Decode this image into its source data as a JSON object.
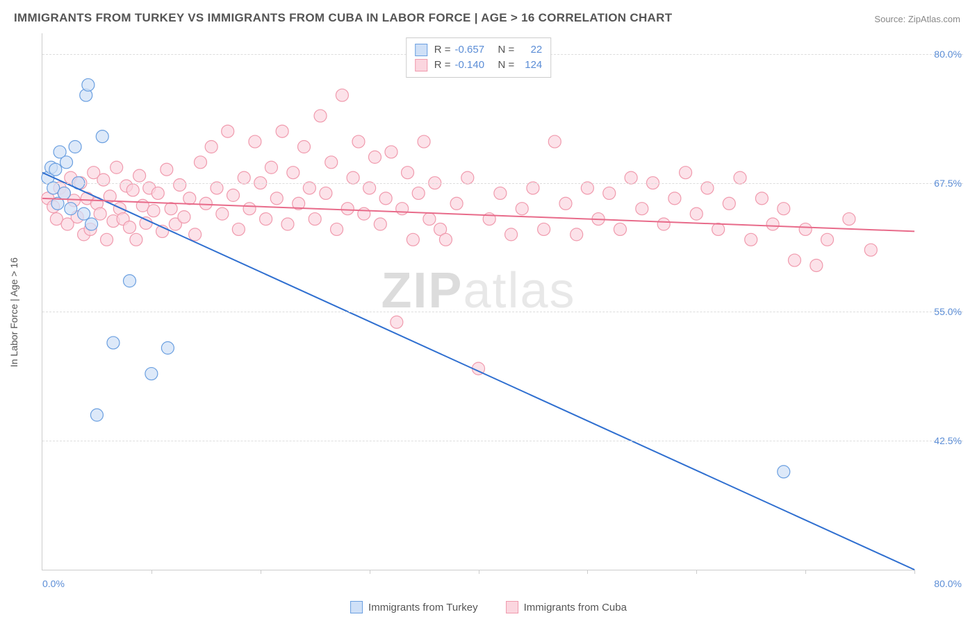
{
  "title": "IMMIGRANTS FROM TURKEY VS IMMIGRANTS FROM CUBA IN LABOR FORCE | AGE > 16 CORRELATION CHART",
  "source_label": "Source:",
  "source_name": "ZipAtlas.com",
  "y_axis_label": "In Labor Force | Age > 16",
  "watermark_zip": "ZIP",
  "watermark_atlas": "atlas",
  "chart": {
    "type": "scatter",
    "xlim": [
      0,
      80
    ],
    "ylim": [
      30,
      82
    ],
    "x_tick_positions": [
      0,
      10,
      20,
      30,
      40,
      50,
      60,
      70,
      80
    ],
    "x_start_label": "0.0%",
    "x_end_label": "80.0%",
    "y_ticks": [
      {
        "value": 42.5,
        "label": "42.5%"
      },
      {
        "value": 55.0,
        "label": "55.0%"
      },
      {
        "value": 67.5,
        "label": "67.5%"
      },
      {
        "value": 80.0,
        "label": "80.0%"
      }
    ],
    "grid_color": "#dddddd",
    "axis_color": "#cccccc",
    "background_color": "#ffffff",
    "marker_radius": 9,
    "marker_stroke_width": 1.2,
    "line_stroke_width": 2,
    "series": [
      {
        "name": "Immigrants from Turkey",
        "fill_color": "#cfe0f7",
        "stroke_color": "#6a9fe0",
        "line_color": "#2f6fd0",
        "r_label": "R =",
        "r_value": "-0.657",
        "n_label": "N =",
        "n_value": "22",
        "regression": {
          "x1": 0,
          "y1": 68.5,
          "x2": 80,
          "y2": 30.0
        },
        "points": [
          [
            0.5,
            68.0
          ],
          [
            0.8,
            69.0
          ],
          [
            1.0,
            67.0
          ],
          [
            1.2,
            68.8
          ],
          [
            1.4,
            65.5
          ],
          [
            1.6,
            70.5
          ],
          [
            2.0,
            66.5
          ],
          [
            2.2,
            69.5
          ],
          [
            2.6,
            65.0
          ],
          [
            3.0,
            71.0
          ],
          [
            3.3,
            67.5
          ],
          [
            3.8,
            64.5
          ],
          [
            4.0,
            76.0
          ],
          [
            4.2,
            77.0
          ],
          [
            4.5,
            63.5
          ],
          [
            5.0,
            45.0
          ],
          [
            5.5,
            72.0
          ],
          [
            6.5,
            52.0
          ],
          [
            8.0,
            58.0
          ],
          [
            10.0,
            49.0
          ],
          [
            11.5,
            51.5
          ],
          [
            68.0,
            39.5
          ]
        ]
      },
      {
        "name": "Immigrants from Cuba",
        "fill_color": "#fbd6df",
        "stroke_color": "#f09aad",
        "line_color": "#e86b8a",
        "r_label": "R =",
        "r_value": "-0.140",
        "n_label": "N =",
        "n_value": "124",
        "regression": {
          "x1": 0,
          "y1": 66.0,
          "x2": 80,
          "y2": 62.8
        },
        "points": [
          [
            0.5,
            66.0
          ],
          [
            1.0,
            65.2
          ],
          [
            1.3,
            64.0
          ],
          [
            1.6,
            67.0
          ],
          [
            2.0,
            66.5
          ],
          [
            2.3,
            63.5
          ],
          [
            2.6,
            68.0
          ],
          [
            2.9,
            65.8
          ],
          [
            3.2,
            64.2
          ],
          [
            3.5,
            67.5
          ],
          [
            3.8,
            62.5
          ],
          [
            4.1,
            66.0
          ],
          [
            4.4,
            63.0
          ],
          [
            4.7,
            68.5
          ],
          [
            5.0,
            65.5
          ],
          [
            5.3,
            64.5
          ],
          [
            5.6,
            67.8
          ],
          [
            5.9,
            62.0
          ],
          [
            6.2,
            66.2
          ],
          [
            6.5,
            63.8
          ],
          [
            6.8,
            69.0
          ],
          [
            7.1,
            65.0
          ],
          [
            7.4,
            64.0
          ],
          [
            7.7,
            67.2
          ],
          [
            8.0,
            63.2
          ],
          [
            8.3,
            66.8
          ],
          [
            8.6,
            62.0
          ],
          [
            8.9,
            68.2
          ],
          [
            9.2,
            65.3
          ],
          [
            9.5,
            63.6
          ],
          [
            9.8,
            67.0
          ],
          [
            10.2,
            64.8
          ],
          [
            10.6,
            66.5
          ],
          [
            11.0,
            62.8
          ],
          [
            11.4,
            68.8
          ],
          [
            11.8,
            65.0
          ],
          [
            12.2,
            63.5
          ],
          [
            12.6,
            67.3
          ],
          [
            13.0,
            64.2
          ],
          [
            13.5,
            66.0
          ],
          [
            14.0,
            62.5
          ],
          [
            14.5,
            69.5
          ],
          [
            15.0,
            65.5
          ],
          [
            15.5,
            71.0
          ],
          [
            16.0,
            67.0
          ],
          [
            16.5,
            64.5
          ],
          [
            17.0,
            72.5
          ],
          [
            17.5,
            66.3
          ],
          [
            18.0,
            63.0
          ],
          [
            18.5,
            68.0
          ],
          [
            19.0,
            65.0
          ],
          [
            19.5,
            71.5
          ],
          [
            20.0,
            67.5
          ],
          [
            20.5,
            64.0
          ],
          [
            21.0,
            69.0
          ],
          [
            21.5,
            66.0
          ],
          [
            22.0,
            72.5
          ],
          [
            22.5,
            63.5
          ],
          [
            23.0,
            68.5
          ],
          [
            23.5,
            65.5
          ],
          [
            24.0,
            71.0
          ],
          [
            24.5,
            67.0
          ],
          [
            25.0,
            64.0
          ],
          [
            25.5,
            74.0
          ],
          [
            26.0,
            66.5
          ],
          [
            26.5,
            69.5
          ],
          [
            27.0,
            63.0
          ],
          [
            27.5,
            76.0
          ],
          [
            28.0,
            65.0
          ],
          [
            28.5,
            68.0
          ],
          [
            29.0,
            71.5
          ],
          [
            29.5,
            64.5
          ],
          [
            30.0,
            67.0
          ],
          [
            30.5,
            70.0
          ],
          [
            31.0,
            63.5
          ],
          [
            31.5,
            66.0
          ],
          [
            32.0,
            70.5
          ],
          [
            32.5,
            54.0
          ],
          [
            33.0,
            65.0
          ],
          [
            33.5,
            68.5
          ],
          [
            34.0,
            62.0
          ],
          [
            34.5,
            66.5
          ],
          [
            35.0,
            71.5
          ],
          [
            35.5,
            64.0
          ],
          [
            36.0,
            67.5
          ],
          [
            36.5,
            63.0
          ],
          [
            37.0,
            62.0
          ],
          [
            38.0,
            65.5
          ],
          [
            39.0,
            68.0
          ],
          [
            40.0,
            49.5
          ],
          [
            41.0,
            64.0
          ],
          [
            42.0,
            66.5
          ],
          [
            43.0,
            62.5
          ],
          [
            44.0,
            65.0
          ],
          [
            45.0,
            67.0
          ],
          [
            46.0,
            63.0
          ],
          [
            47.0,
            71.5
          ],
          [
            48.0,
            65.5
          ],
          [
            49.0,
            62.5
          ],
          [
            50.0,
            67.0
          ],
          [
            51.0,
            64.0
          ],
          [
            52.0,
            66.5
          ],
          [
            53.0,
            63.0
          ],
          [
            54.0,
            68.0
          ],
          [
            55.0,
            65.0
          ],
          [
            56.0,
            67.5
          ],
          [
            57.0,
            63.5
          ],
          [
            58.0,
            66.0
          ],
          [
            59.0,
            68.5
          ],
          [
            60.0,
            64.5
          ],
          [
            61.0,
            67.0
          ],
          [
            62.0,
            63.0
          ],
          [
            63.0,
            65.5
          ],
          [
            64.0,
            68.0
          ],
          [
            65.0,
            62.0
          ],
          [
            66.0,
            66.0
          ],
          [
            67.0,
            63.5
          ],
          [
            68.0,
            65.0
          ],
          [
            69.0,
            60.0
          ],
          [
            70.0,
            63.0
          ],
          [
            71.0,
            59.5
          ],
          [
            72.0,
            62.0
          ],
          [
            74.0,
            64.0
          ],
          [
            76.0,
            61.0
          ]
        ]
      }
    ]
  }
}
